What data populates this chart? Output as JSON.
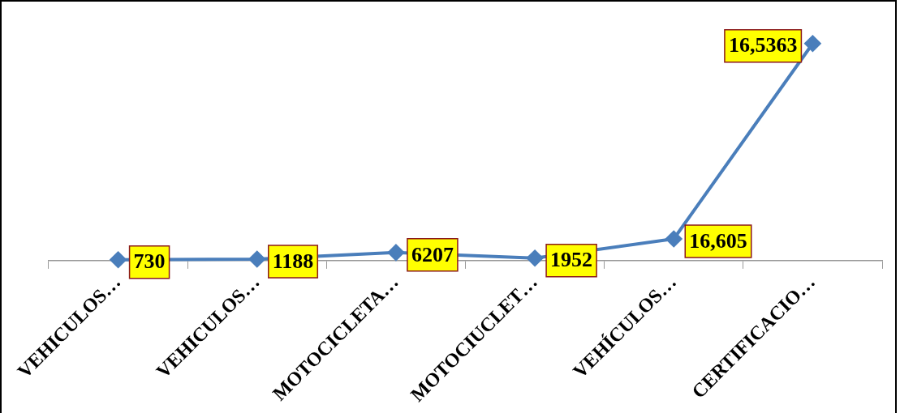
{
  "chart_data": {
    "type": "line",
    "categories": [
      "VEHICULOS…",
      "VEHICULOS…",
      "MOTOCICLETA…",
      "MOTOCIUCLET…",
      "VEHÍCULOS…",
      "CERTIFICACIO…"
    ],
    "series": [
      {
        "color": "#4a7ebb",
        "values": [
          730,
          1188,
          6207,
          1952,
          16605,
          165363
        ],
        "value_labels": [
          "730",
          "1188",
          "6207",
          "1952",
          "16,605",
          "16,5363"
        ]
      }
    ],
    "marker": "diamond",
    "line_style": "solid",
    "grid": false,
    "legend": false
  }
}
